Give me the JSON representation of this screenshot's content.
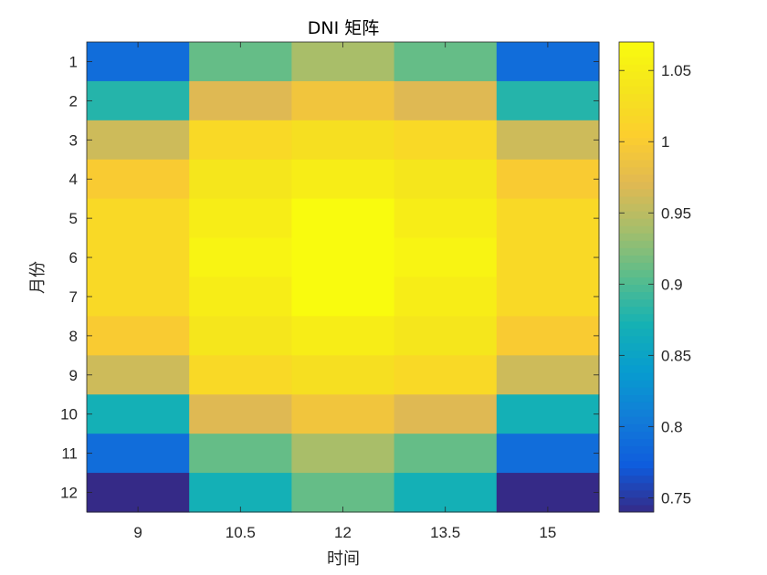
{
  "chart_data": {
    "type": "heatmap",
    "title": "DNI 矩阵",
    "xlabel": "时间",
    "ylabel": "月份",
    "x_categories": [
      "9",
      "10.5",
      "12",
      "13.5",
      "15"
    ],
    "y_categories": [
      "1",
      "2",
      "3",
      "4",
      "5",
      "6",
      "7",
      "8",
      "9",
      "10",
      "11",
      "12"
    ],
    "values": [
      [
        0.79,
        0.91,
        0.94,
        0.91,
        0.79
      ],
      [
        0.88,
        0.97,
        0.99,
        0.97,
        0.88
      ],
      [
        0.96,
        1.02,
        1.03,
        1.02,
        0.96
      ],
      [
        1.0,
        1.04,
        1.05,
        1.04,
        1.0
      ],
      [
        1.02,
        1.05,
        1.07,
        1.05,
        1.02
      ],
      [
        1.02,
        1.06,
        1.07,
        1.06,
        1.02
      ],
      [
        1.02,
        1.05,
        1.07,
        1.05,
        1.02
      ],
      [
        1.0,
        1.04,
        1.05,
        1.04,
        1.0
      ],
      [
        0.96,
        1.02,
        1.03,
        1.02,
        0.96
      ],
      [
        0.87,
        0.97,
        0.99,
        0.97,
        0.87
      ],
      [
        0.79,
        0.91,
        0.94,
        0.91,
        0.79
      ],
      [
        0.74,
        0.87,
        0.91,
        0.87,
        0.74
      ]
    ],
    "colorbar": {
      "colormap": "parula",
      "range": [
        0.74,
        1.07
      ],
      "ticks": [
        0.75,
        0.8,
        0.85,
        0.9,
        0.95,
        1,
        1.05
      ],
      "tick_labels": [
        "0.75",
        "0.8",
        "0.85",
        "0.9",
        "0.95",
        "1",
        "1.05"
      ]
    }
  }
}
